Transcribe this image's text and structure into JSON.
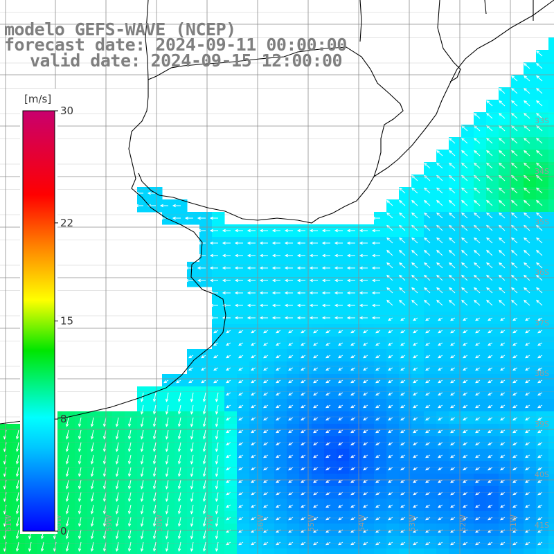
{
  "title": {
    "line1": "modelo GEFS-WAVE (NCEP)",
    "line2": "forecast date: 2024-09-11 00:00:00",
    "line3": "valid date: 2024-09-15 12:00:00"
  },
  "colorbar": {
    "unit": "[m/s]",
    "ticks": [
      "30",
      "22",
      "15",
      "8",
      "0"
    ],
    "tick_values": [
      30,
      22,
      15,
      8,
      0
    ],
    "range": [
      0,
      30
    ],
    "colors": [
      "#0000ff",
      "#00c8ff",
      "#00ffff",
      "#00e600",
      "#ffff00",
      "#ff8000",
      "#ff0000",
      "#c8006e"
    ]
  },
  "grid": {
    "lon_labels": [
      "61W",
      "60W",
      "59W",
      "58W",
      "57W",
      "56W",
      "55W",
      "54W",
      "53W",
      "52W",
      "51W"
    ],
    "lat_labels": [
      "33S",
      "34S",
      "35S",
      "36S",
      "37S",
      "38S",
      "39S",
      "40S",
      "41S"
    ]
  },
  "map": {
    "variable": "wind speed",
    "ocean_color_low": "#0000ff",
    "ocean_color_high": "#00ff00",
    "land_color": "#ffffff",
    "coast_color": "#000000",
    "arrow_color": "#ffffff",
    "grid_color": "#8c8c8c"
  }
}
